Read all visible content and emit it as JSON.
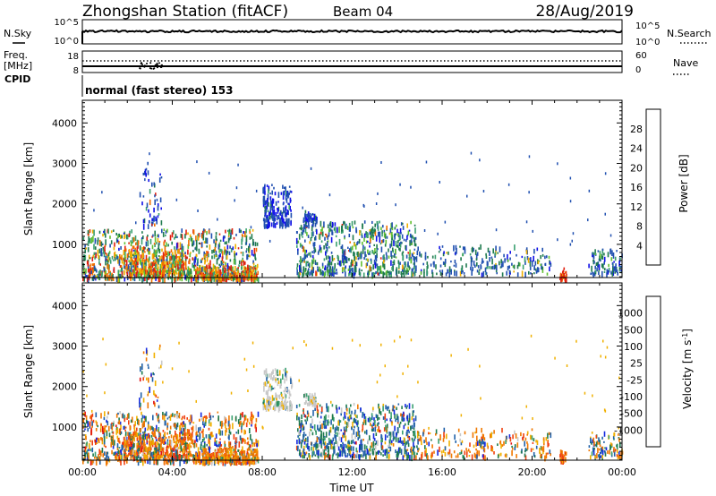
{
  "header": {
    "station": "Zhongshan Station (fitACF)",
    "beam": "Beam 04",
    "date": "28/Aug/2019"
  },
  "top_panels": {
    "nsky_label": "N.Sky",
    "nsky_ticks": [
      "10^5",
      "10^0"
    ],
    "nsearch_label": "N.Search",
    "nsearch_ticks": [
      "10^5",
      "10^0"
    ],
    "freq_label_1": "Freq.",
    "freq_label_2": "[MHz]",
    "freq_ticks": [
      "18",
      "8"
    ],
    "nave_label": "Nave",
    "nave_ticks": [
      "60",
      "0"
    ],
    "cpid_label": "CPID",
    "cpid_text": "normal (fast stereo) 153"
  },
  "chart_data": [
    {
      "type": "heatmap",
      "title": "",
      "xlabel": "",
      "ylabel": "Slant Range [km]",
      "xlim": [
        "00:00",
        "00:00"
      ],
      "ylim": [
        180,
        4560
      ],
      "y_ticks": [
        "1000",
        "2000",
        "3000",
        "4000"
      ],
      "colorbar": {
        "label": "Power [dB]",
        "ticks": [
          "4",
          "8",
          "12",
          "16",
          "20",
          "24",
          "28"
        ],
        "colors": [
          "#1010e8",
          "#2050b0",
          "#1e7a4e",
          "#3aa070",
          "#60c030",
          "#f0b000",
          "#f07000",
          "#e02010"
        ]
      },
      "regions": [
        {
          "t": [
            0.0,
            7.8
          ],
          "r": [
            180,
            1400
          ],
          "level": "mixed high"
        },
        {
          "t": [
            2.5,
            3.5
          ],
          "r": [
            1500,
            3050
          ],
          "level": "low"
        },
        {
          "t": [
            8.0,
            9.3
          ],
          "r": [
            1500,
            2500
          ],
          "level": "low"
        },
        {
          "t": [
            9.5,
            14.8
          ],
          "r": [
            300,
            1600
          ],
          "level": "mixed"
        },
        {
          "t": [
            14.8,
            20.8
          ],
          "r": [
            300,
            1000
          ],
          "level": "low"
        },
        {
          "t": [
            21.2,
            21.5
          ],
          "r": [
            180,
            450
          ],
          "level": "high"
        },
        {
          "t": [
            22.5,
            24.0
          ],
          "r": [
            300,
            900
          ],
          "level": "low"
        }
      ]
    },
    {
      "type": "heatmap",
      "title": "",
      "xlabel": "Time UT",
      "ylabel": "Slant Range [km]",
      "xlim": [
        "00:00",
        "00:00"
      ],
      "ylim": [
        180,
        4560
      ],
      "x_ticks": [
        "00:00",
        "04:00",
        "08:00",
        "12:00",
        "16:00",
        "20:00",
        "00:00"
      ],
      "y_ticks": [
        "1000",
        "2000",
        "3000",
        "4000"
      ],
      "colorbar": {
        "label": "Velocity [m s^-1]",
        "ticks": [
          "1000",
          "500",
          "100",
          "25",
          "-25",
          "-100",
          "-500",
          "-1000"
        ],
        "colors": [
          "#1428e0",
          "#2060a8",
          "#1e7a4e",
          "#3aa070",
          "#c8c8c8",
          "#f0b000",
          "#f07800",
          "#f04010",
          "#e01010"
        ]
      },
      "regions": [
        {
          "t": [
            0.0,
            7.8
          ],
          "r": [
            180,
            1400
          ],
          "level": "negative"
        },
        {
          "t": [
            2.5,
            3.5
          ],
          "r": [
            1500,
            3050
          ],
          "level": "mixed"
        },
        {
          "t": [
            8.0,
            9.3
          ],
          "r": [
            1500,
            2500
          ],
          "level": "near zero"
        },
        {
          "t": [
            9.5,
            14.8
          ],
          "r": [
            300,
            1600
          ],
          "level": "positive"
        },
        {
          "t": [
            14.8,
            20.8
          ],
          "r": [
            300,
            1000
          ],
          "level": "negative"
        },
        {
          "t": [
            21.2,
            21.5
          ],
          "r": [
            180,
            450
          ],
          "level": "negative"
        }
      ]
    }
  ]
}
